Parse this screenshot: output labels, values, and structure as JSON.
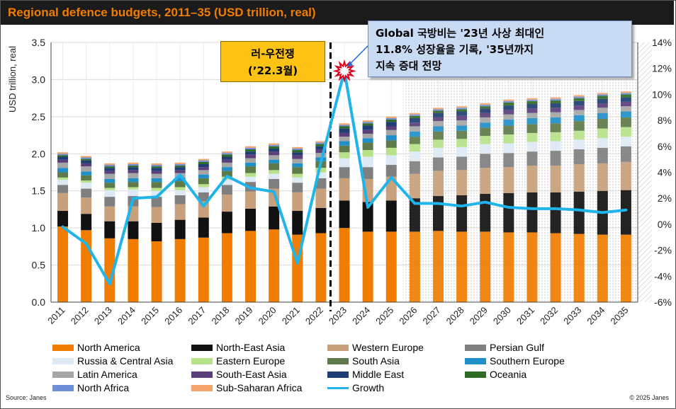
{
  "title": "Regional defence budgets, 2011–35 (USD trillion, real)",
  "source": "Source: Janes",
  "copyright": "© 2025 Janes",
  "annotations": {
    "war": {
      "line1": "러-우전쟁",
      "line2": "(’22.3월)"
    },
    "global": {
      "line1": "Global 국방비는 '23년 사상 최대인",
      "line2": "11.8% 성장율을 기록, '35년까지",
      "line3": "지속 증대 전망"
    }
  },
  "chart_data": {
    "type": "bar",
    "stacked": true,
    "title": "Regional defence budgets, 2011–35 (USD trillion, real)",
    "ylabel": "USD trillion, real",
    "ylim": [
      0,
      3.5
    ],
    "yticks": [
      "0.0",
      "0.5",
      "1.0",
      "1.5",
      "2.0",
      "2.5",
      "3.0",
      "3.5"
    ],
    "y2lim": [
      -6,
      14
    ],
    "y2ticks": [
      "-6%",
      "-4%",
      "-2%",
      "0%",
      "2%",
      "4%",
      "6%",
      "8%",
      "10%",
      "12%",
      "14%"
    ],
    "forecast_start": "2026",
    "war_marker_after": "2022",
    "categories": [
      "2011",
      "2012",
      "2013",
      "2014",
      "2015",
      "2016",
      "2017",
      "2018",
      "2019",
      "2020",
      "2021",
      "2022",
      "2023",
      "2024",
      "2025",
      "2026",
      "2027",
      "2028",
      "2029",
      "2030",
      "2031",
      "2032",
      "2033",
      "2034",
      "2035"
    ],
    "series": [
      {
        "name": "North America",
        "color": "#f07d00",
        "values": [
          1.02,
          0.97,
          0.86,
          0.85,
          0.82,
          0.85,
          0.87,
          0.93,
          0.96,
          0.98,
          0.91,
          0.93,
          1.0,
          0.95,
          0.95,
          0.95,
          0.96,
          0.95,
          0.95,
          0.94,
          0.94,
          0.93,
          0.92,
          0.91,
          0.91
        ]
      },
      {
        "name": "North-East Asia",
        "color": "#111111",
        "values": [
          0.21,
          0.22,
          0.23,
          0.24,
          0.25,
          0.26,
          0.27,
          0.29,
          0.3,
          0.31,
          0.32,
          0.34,
          0.37,
          0.4,
          0.42,
          0.45,
          0.47,
          0.49,
          0.51,
          0.53,
          0.54,
          0.55,
          0.57,
          0.59,
          0.6
        ]
      },
      {
        "name": "Western Europe",
        "color": "#c8a07c",
        "values": [
          0.24,
          0.22,
          0.2,
          0.2,
          0.21,
          0.21,
          0.22,
          0.23,
          0.23,
          0.24,
          0.25,
          0.26,
          0.3,
          0.31,
          0.32,
          0.33,
          0.34,
          0.34,
          0.35,
          0.35,
          0.36,
          0.36,
          0.37,
          0.37,
          0.38
        ]
      },
      {
        "name": "Persian Gulf",
        "color": "#7f7f7f",
        "values": [
          0.11,
          0.12,
          0.13,
          0.14,
          0.14,
          0.12,
          0.12,
          0.13,
          0.13,
          0.13,
          0.13,
          0.14,
          0.15,
          0.16,
          0.16,
          0.17,
          0.18,
          0.18,
          0.19,
          0.19,
          0.19,
          0.2,
          0.2,
          0.21,
          0.21
        ]
      },
      {
        "name": "Russia & Central Asia",
        "color": "#dde9f5",
        "values": [
          0.07,
          0.08,
          0.09,
          0.09,
          0.08,
          0.07,
          0.07,
          0.07,
          0.07,
          0.07,
          0.07,
          0.08,
          0.12,
          0.14,
          0.13,
          0.13,
          0.13,
          0.13,
          0.13,
          0.13,
          0.13,
          0.13,
          0.13,
          0.13,
          0.13
        ]
      },
      {
        "name": "Eastern Europe",
        "color": "#b7e28a",
        "values": [
          0.03,
          0.03,
          0.03,
          0.03,
          0.04,
          0.04,
          0.04,
          0.04,
          0.05,
          0.05,
          0.05,
          0.06,
          0.08,
          0.09,
          0.1,
          0.1,
          0.11,
          0.11,
          0.11,
          0.12,
          0.12,
          0.12,
          0.12,
          0.13,
          0.13
        ]
      },
      {
        "name": "South Asia",
        "color": "#5e7a4a",
        "values": [
          0.07,
          0.07,
          0.07,
          0.07,
          0.08,
          0.08,
          0.08,
          0.08,
          0.09,
          0.09,
          0.09,
          0.09,
          0.09,
          0.1,
          0.1,
          0.1,
          0.11,
          0.11,
          0.11,
          0.12,
          0.12,
          0.12,
          0.13,
          0.13,
          0.13
        ]
      },
      {
        "name": "Southern Europe",
        "color": "#1f8fc9",
        "values": [
          0.06,
          0.05,
          0.05,
          0.05,
          0.05,
          0.05,
          0.05,
          0.05,
          0.05,
          0.05,
          0.05,
          0.05,
          0.06,
          0.06,
          0.07,
          0.07,
          0.07,
          0.07,
          0.07,
          0.08,
          0.08,
          0.08,
          0.08,
          0.08,
          0.08
        ]
      },
      {
        "name": "Latin America",
        "color": "#a6a6a6",
        "values": [
          0.07,
          0.07,
          0.07,
          0.07,
          0.06,
          0.06,
          0.06,
          0.06,
          0.06,
          0.06,
          0.06,
          0.06,
          0.06,
          0.06,
          0.07,
          0.07,
          0.07,
          0.07,
          0.07,
          0.07,
          0.07,
          0.07,
          0.07,
          0.07,
          0.07
        ]
      },
      {
        "name": "South-East Asia",
        "color": "#5b3f7a",
        "values": [
          0.04,
          0.04,
          0.04,
          0.04,
          0.04,
          0.04,
          0.04,
          0.04,
          0.05,
          0.05,
          0.05,
          0.05,
          0.05,
          0.05,
          0.05,
          0.05,
          0.05,
          0.06,
          0.06,
          0.06,
          0.06,
          0.06,
          0.06,
          0.06,
          0.06
        ]
      },
      {
        "name": "Middle East",
        "color": "#1f3e73",
        "values": [
          0.04,
          0.04,
          0.04,
          0.04,
          0.04,
          0.04,
          0.04,
          0.04,
          0.04,
          0.04,
          0.04,
          0.04,
          0.06,
          0.06,
          0.06,
          0.06,
          0.06,
          0.06,
          0.06,
          0.06,
          0.06,
          0.06,
          0.06,
          0.06,
          0.06
        ]
      },
      {
        "name": "Oceania",
        "color": "#2f6b24",
        "values": [
          0.02,
          0.02,
          0.02,
          0.02,
          0.02,
          0.02,
          0.03,
          0.03,
          0.03,
          0.03,
          0.03,
          0.03,
          0.03,
          0.03,
          0.03,
          0.03,
          0.03,
          0.03,
          0.03,
          0.04,
          0.04,
          0.04,
          0.04,
          0.04,
          0.04
        ]
      },
      {
        "name": "North Africa",
        "color": "#6f8fd8",
        "values": [
          0.02,
          0.02,
          0.02,
          0.02,
          0.02,
          0.02,
          0.02,
          0.02,
          0.02,
          0.02,
          0.02,
          0.02,
          0.02,
          0.02,
          0.02,
          0.02,
          0.02,
          0.02,
          0.02,
          0.02,
          0.02,
          0.02,
          0.02,
          0.02,
          0.02
        ]
      },
      {
        "name": "Sub-Saharan Africa",
        "color": "#f4a46a",
        "values": [
          0.02,
          0.02,
          0.02,
          0.02,
          0.02,
          0.02,
          0.02,
          0.02,
          0.02,
          0.02,
          0.02,
          0.02,
          0.02,
          0.02,
          0.02,
          0.02,
          0.02,
          0.02,
          0.02,
          0.02,
          0.02,
          0.02,
          0.02,
          0.02,
          0.02
        ]
      }
    ],
    "line_series": {
      "name": "Growth",
      "color": "#1fb4ea",
      "axis": "right",
      "values": [
        -0.2,
        -1.5,
        -4.6,
        2.0,
        2.1,
        3.8,
        1.4,
        3.7,
        2.8,
        2.5,
        -3.0,
        4.8,
        11.8,
        1.3,
        3.6,
        1.6,
        1.6,
        1.4,
        1.7,
        1.3,
        1.2,
        1.2,
        1.1,
        0.9,
        1.1
      ]
    },
    "legend": [
      "North America",
      "North-East Asia",
      "Western Europe",
      "Persian Gulf",
      "Russia & Central Asia",
      "Eastern Europe",
      "South Asia",
      "Southern Europe",
      "Latin America",
      "South-East Asia",
      "Middle East",
      "Oceania",
      "North Africa",
      "Sub-Saharan Africa",
      "Growth"
    ]
  }
}
